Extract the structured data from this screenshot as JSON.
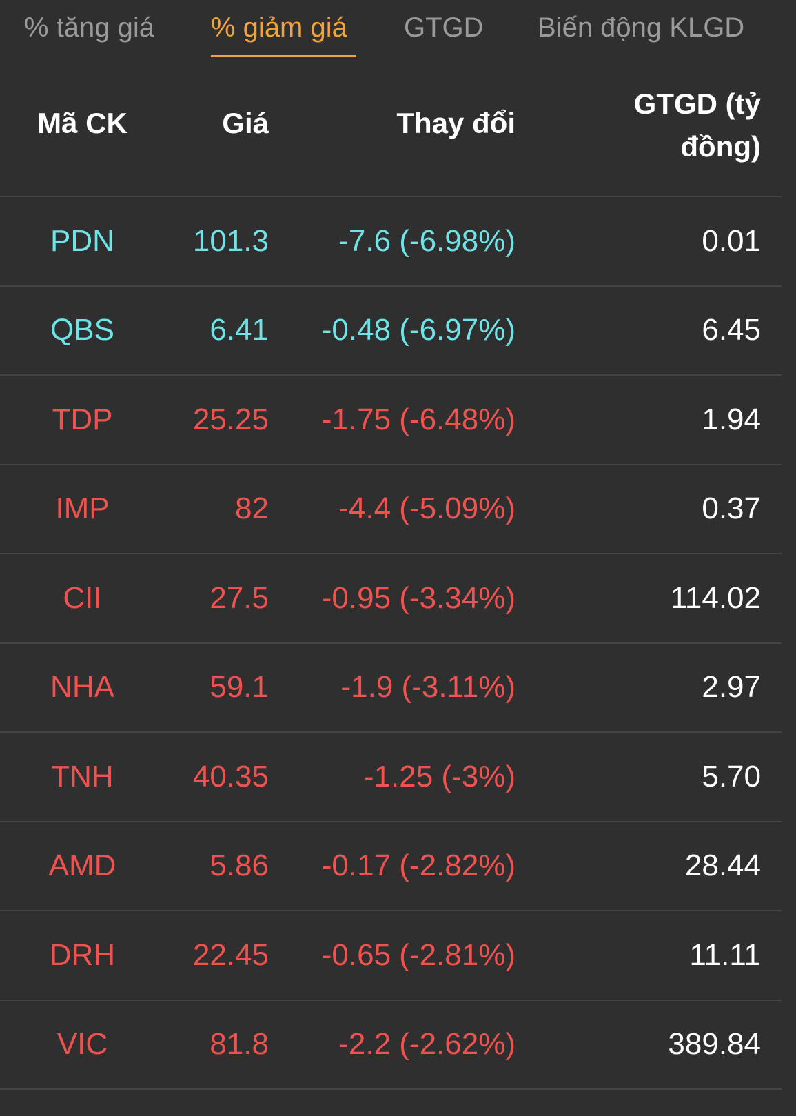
{
  "tabs": [
    {
      "label": "% tăng giá",
      "active": false
    },
    {
      "label": "% giảm giá",
      "active": true
    },
    {
      "label": "GTGD",
      "active": false
    },
    {
      "label": "Biến động KLGD",
      "active": false
    }
  ],
  "columns": {
    "code": "Mã CK",
    "price": "Giá",
    "change": "Thay đổi",
    "value_line1": "GTGD (tỷ",
    "value_line2": "đồng)"
  },
  "colors": {
    "floor": "#6fe3e6",
    "down": "#ef5350",
    "accent": "#f2a33a",
    "background": "#2f2f2f"
  },
  "rows": [
    {
      "code": "PDN",
      "price": "101.3",
      "change": "-7.6 (-6.98%)",
      "value": "0.01",
      "status": "floor"
    },
    {
      "code": "QBS",
      "price": "6.41",
      "change": "-0.48 (-6.97%)",
      "value": "6.45",
      "status": "floor"
    },
    {
      "code": "TDP",
      "price": "25.25",
      "change": "-1.75 (-6.48%)",
      "value": "1.94",
      "status": "down"
    },
    {
      "code": "IMP",
      "price": "82",
      "change": "-4.4 (-5.09%)",
      "value": "0.37",
      "status": "down"
    },
    {
      "code": "CII",
      "price": "27.5",
      "change": "-0.95 (-3.34%)",
      "value": "114.02",
      "status": "down"
    },
    {
      "code": "NHA",
      "price": "59.1",
      "change": "-1.9 (-3.11%)",
      "value": "2.97",
      "status": "down"
    },
    {
      "code": "TNH",
      "price": "40.35",
      "change": "-1.25 (-3%)",
      "value": "5.70",
      "status": "down"
    },
    {
      "code": "AMD",
      "price": "5.86",
      "change": "-0.17 (-2.82%)",
      "value": "28.44",
      "status": "down"
    },
    {
      "code": "DRH",
      "price": "22.45",
      "change": "-0.65 (-2.81%)",
      "value": "11.11",
      "status": "down"
    },
    {
      "code": "VIC",
      "price": "81.8",
      "change": "-2.2 (-2.62%)",
      "value": "389.84",
      "status": "down"
    }
  ]
}
